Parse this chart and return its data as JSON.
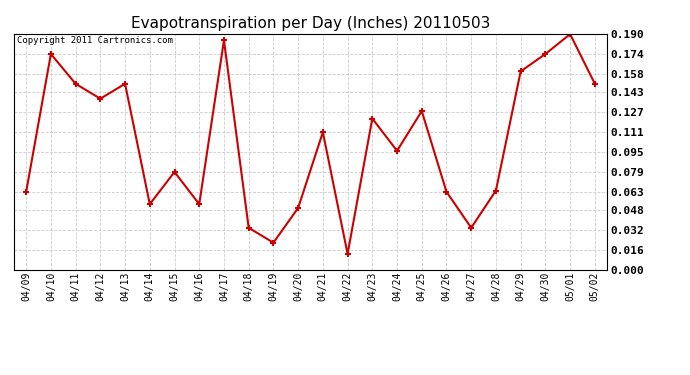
{
  "title": "Evapotranspiration per Day (Inches) 20110503",
  "copyright_text": "Copyright 2011 Cartronics.com",
  "x_labels": [
    "04/09",
    "04/10",
    "04/11",
    "04/12",
    "04/13",
    "04/14",
    "04/15",
    "04/16",
    "04/17",
    "04/18",
    "04/19",
    "04/20",
    "04/21",
    "04/22",
    "04/23",
    "04/24",
    "04/25",
    "04/26",
    "04/27",
    "04/28",
    "04/29",
    "04/30",
    "05/01",
    "05/02"
  ],
  "y_values": [
    0.063,
    0.174,
    0.15,
    0.138,
    0.15,
    0.053,
    0.079,
    0.053,
    0.185,
    0.034,
    0.022,
    0.05,
    0.111,
    0.013,
    0.122,
    0.096,
    0.128,
    0.063,
    0.034,
    0.064,
    0.16,
    0.174,
    0.19,
    0.15
  ],
  "line_color": "#cc0000",
  "marker": "+",
  "marker_size": 5,
  "line_width": 1.5,
  "ylim": [
    0.0,
    0.1903
  ],
  "yticks": [
    0.0,
    0.016,
    0.032,
    0.048,
    0.063,
    0.079,
    0.095,
    0.111,
    0.127,
    0.143,
    0.158,
    0.174,
    0.19
  ],
  "bg_color": "#ffffff",
  "grid_color": "#cccccc",
  "title_fontsize": 11,
  "copyright_fontsize": 6.5,
  "tick_fontsize": 7,
  "ytick_fontsize": 8
}
